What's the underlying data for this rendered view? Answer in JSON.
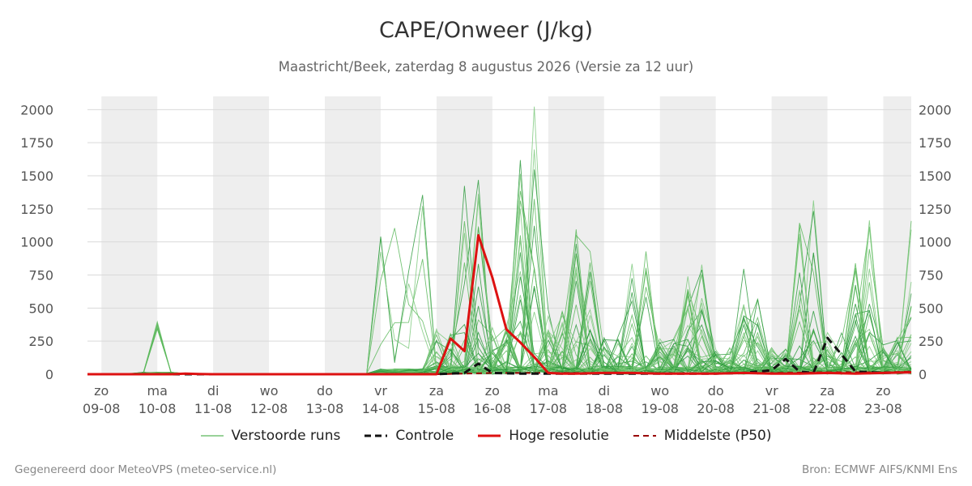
{
  "chart_data": {
    "type": "line",
    "title": "CAPE/Onweer (J/kg)",
    "subtitle": "Maastricht/Beek, zaterdag  8 augustus 2026 (Versie za 12 uur)",
    "x_days": [
      {
        "weekday": "zo",
        "date": "09-08"
      },
      {
        "weekday": "ma",
        "date": "10-08"
      },
      {
        "weekday": "di",
        "date": "11-08"
      },
      {
        "weekday": "wo",
        "date": "12-08"
      },
      {
        "weekday": "do",
        "date": "13-08"
      },
      {
        "weekday": "vr",
        "date": "14-08"
      },
      {
        "weekday": "za",
        "date": "15-08"
      },
      {
        "weekday": "zo",
        "date": "16-08"
      },
      {
        "weekday": "ma",
        "date": "17-08"
      },
      {
        "weekday": "di",
        "date": "18-08"
      },
      {
        "weekday": "wo",
        "date": "19-08"
      },
      {
        "weekday": "do",
        "date": "20-08"
      },
      {
        "weekday": "vr",
        "date": "21-08"
      },
      {
        "weekday": "za",
        "date": "22-08"
      },
      {
        "weekday": "zo",
        "date": "23-08"
      }
    ],
    "ylim": [
      0,
      2100
    ],
    "y_ticks": [
      0,
      250,
      500,
      750,
      1000,
      1250,
      1500,
      1750,
      2000
    ],
    "x_unit": "days since 09-08 00:00",
    "xlim": [
      -0.25,
      14.5
    ],
    "weekend_bands": [
      [
        0,
        1
      ],
      [
        2,
        3
      ],
      [
        4,
        5
      ],
      [
        6,
        7
      ],
      [
        8,
        9
      ],
      [
        10,
        11
      ],
      [
        12,
        13
      ],
      [
        14,
        14.5
      ]
    ],
    "grid": true,
    "legend": "bottom",
    "series": [
      {
        "name": "Hoge resolutie",
        "color": "#dd1111",
        "x": [
          -0.25,
          0,
          0.25,
          0.5,
          0.75,
          1,
          1.25,
          1.5,
          1.75,
          2,
          2.5,
          3,
          3.5,
          4,
          4.5,
          5,
          5.5,
          6,
          6.25,
          6.5,
          6.75,
          7,
          7.25,
          7.5,
          7.75,
          8,
          8.25,
          8.5,
          9,
          9.5,
          10,
          10.5,
          11,
          11.5,
          12,
          12.5,
          13,
          13.5,
          14,
          14.5
        ],
        "values": [
          0,
          0,
          0,
          0,
          0,
          0,
          0,
          5,
          2,
          0,
          0,
          0,
          0,
          0,
          0,
          0,
          0,
          0,
          270,
          175,
          1050,
          730,
          340,
          240,
          130,
          10,
          5,
          5,
          10,
          10,
          5,
          5,
          5,
          10,
          5,
          5,
          10,
          5,
          10,
          15
        ]
      },
      {
        "name": "Controle",
        "color": "#111111",
        "x": [
          -0.25,
          6,
          6.5,
          6.75,
          7,
          7.5,
          8,
          9,
          10,
          11,
          11.5,
          12,
          12.25,
          12.5,
          12.75,
          13,
          13.25,
          13.5,
          14,
          14.5
        ],
        "values": [
          0,
          0,
          10,
          80,
          10,
          5,
          5,
          5,
          5,
          5,
          10,
          30,
          115,
          20,
          10,
          275,
          150,
          20,
          10,
          15
        ]
      },
      {
        "name": "Middelste (P50)",
        "color": "#990000",
        "x": [
          -0.25,
          6,
          7,
          8,
          9,
          10,
          11,
          12,
          13,
          14,
          14.5
        ],
        "values": [
          0,
          0,
          10,
          10,
          10,
          5,
          5,
          10,
          15,
          15,
          20
        ]
      }
    ],
    "ensemble": {
      "name": "Verstoorde runs",
      "members": 50,
      "step_days": 0.25,
      "colors": [
        "#5cb85c",
        "#2e9b3e",
        "#7cc97c"
      ],
      "peak_values": [
        180,
        400,
        1020,
        1390,
        1460,
        1510,
        1440,
        1520,
        2070,
        1150,
        1140,
        870,
        920,
        1320,
        1170
      ]
    }
  },
  "legend_labels": [
    "Verstoorde runs",
    "Controle",
    "Hoge resolutie",
    "Middelste (P50)"
  ],
  "footer": {
    "left": "Gegenereerd door MeteoVPS (meteo-service.nl)",
    "right": "Bron: ECMWF AIFS/KNMI Ens"
  }
}
